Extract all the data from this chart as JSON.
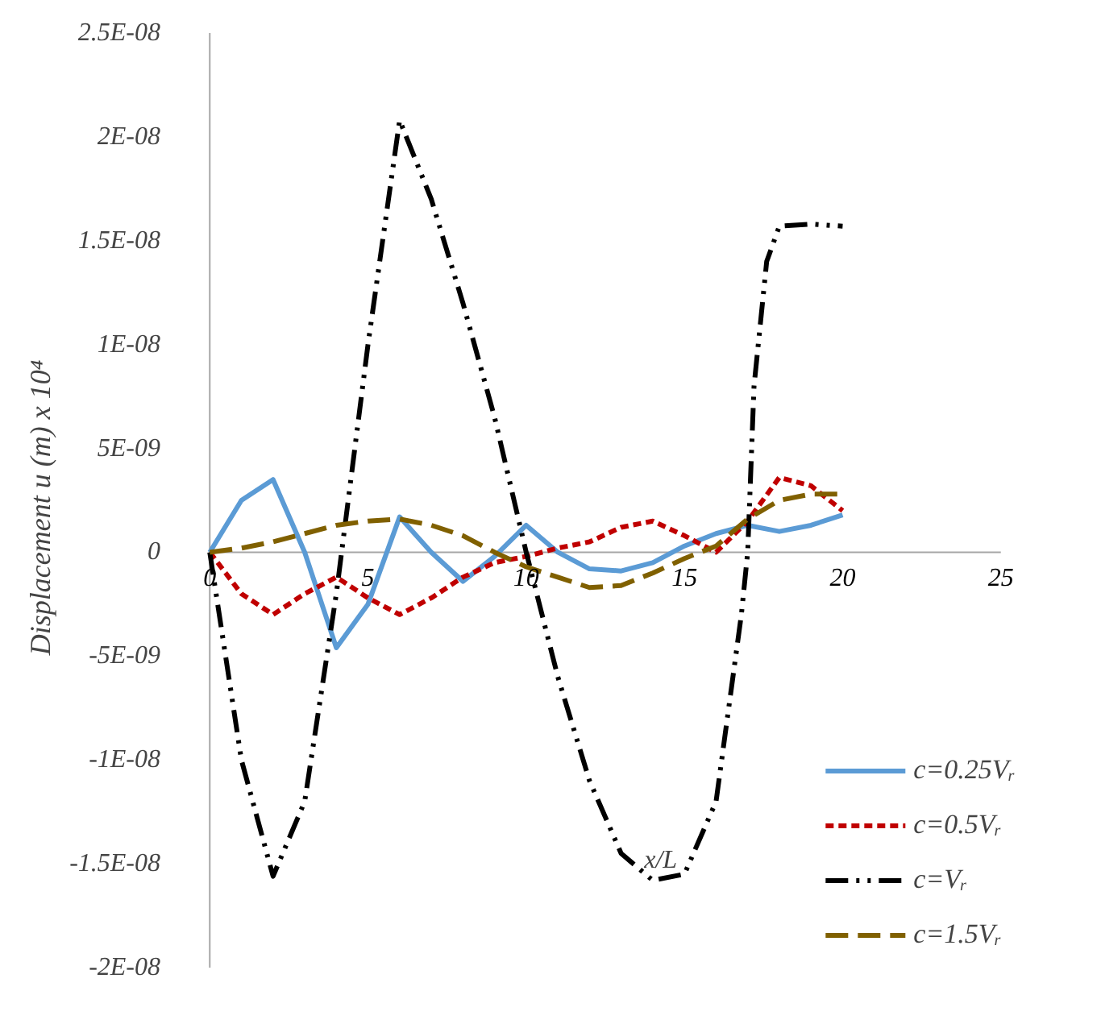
{
  "chart_data": {
    "type": "line",
    "xlabel": "x/L",
    "ylabel": "Displacement u (m)   x 10⁴",
    "x": [
      0,
      1,
      2,
      3,
      4,
      5,
      6,
      7,
      8,
      9,
      10,
      11,
      12,
      13,
      14,
      15,
      16,
      17,
      18,
      19,
      20
    ],
    "series": [
      {
        "name": "c=0.25Vᵣ",
        "color": "#5b9bd5",
        "line_style": "solid",
        "values": [
          0,
          2.5e-09,
          3.5e-09,
          0,
          -4.6e-09,
          -2.5e-09,
          1.7e-09,
          0,
          -1.4e-09,
          -2e-10,
          1.3e-09,
          0,
          -8e-10,
          -9e-10,
          -5e-10,
          3e-10,
          9e-10,
          1.3e-09,
          1e-09,
          1.3e-09,
          1.8e-09
        ]
      },
      {
        "name": "c=0.5Vᵣ",
        "color": "#c00000",
        "line_style": "dotted",
        "values": [
          0,
          -2e-09,
          -3e-09,
          -2e-09,
          -1.2e-09,
          -2.2e-09,
          -3e-09,
          -2.2e-09,
          -1.2e-09,
          -5e-10,
          -2e-10,
          2e-10,
          5e-10,
          1.2e-09,
          1.5e-09,
          8e-10,
          0,
          1.5e-09,
          3.6e-09,
          3.2e-09,
          2e-09
        ]
      },
      {
        "name": "c=Vᵣ",
        "color": "#000000",
        "line_style": "dashdot",
        "x": [
          0,
          1,
          2,
          3,
          4,
          5,
          6,
          7,
          8,
          9,
          10,
          11,
          12,
          13,
          14,
          15,
          16,
          16.8,
          17,
          17.2,
          17.6,
          18,
          19,
          20
        ],
        "values": [
          0,
          -1e-08,
          -1.56e-08,
          -1.2e-08,
          -2e-09,
          1e-08,
          2.08e-08,
          1.7e-08,
          1.2e-08,
          6.5e-09,
          0,
          -6e-09,
          -1.1e-08,
          -1.45e-08,
          -1.58e-08,
          -1.55e-08,
          -1.2e-08,
          -3e-09,
          0,
          8e-09,
          1.4e-08,
          1.57e-08,
          1.58e-08,
          1.57e-08
        ]
      },
      {
        "name": "c=1.5Vᵣ",
        "color": "#806000",
        "line_style": "dashed",
        "values": [
          0,
          2e-10,
          5e-10,
          9e-10,
          1.3e-09,
          1.5e-09,
          1.6e-09,
          1.3e-09,
          8e-10,
          0,
          -7e-10,
          -1.2e-09,
          -1.7e-09,
          -1.6e-09,
          -1e-09,
          -3e-10,
          3e-10,
          1.6e-09,
          2.5e-09,
          2.8e-09,
          2.8e-09
        ]
      }
    ],
    "xlim": [
      0,
      25
    ],
    "xticks": [
      0,
      5,
      10,
      15,
      20,
      25
    ],
    "ylim": [
      -2e-08,
      2.5e-08
    ],
    "yticks": [
      {
        "value": -2e-08,
        "label": "-2E-08"
      },
      {
        "value": -1.5e-08,
        "label": "-1.5E-08"
      },
      {
        "value": -1e-08,
        "label": "-1E-08"
      },
      {
        "value": -5e-09,
        "label": "-5E-09"
      },
      0,
      {
        "value": 5e-09,
        "label": "5E-09"
      },
      {
        "value": 1e-08,
        "label": "1E-08"
      },
      {
        "value": 1.5e-08,
        "label": "1.5E-08"
      },
      {
        "value": 2e-08,
        "label": "2E-08"
      },
      {
        "value": 2.5e-08,
        "label": "2.5E-08"
      }
    ],
    "grid": false,
    "legend": "bottom right",
    "marker": "none"
  }
}
